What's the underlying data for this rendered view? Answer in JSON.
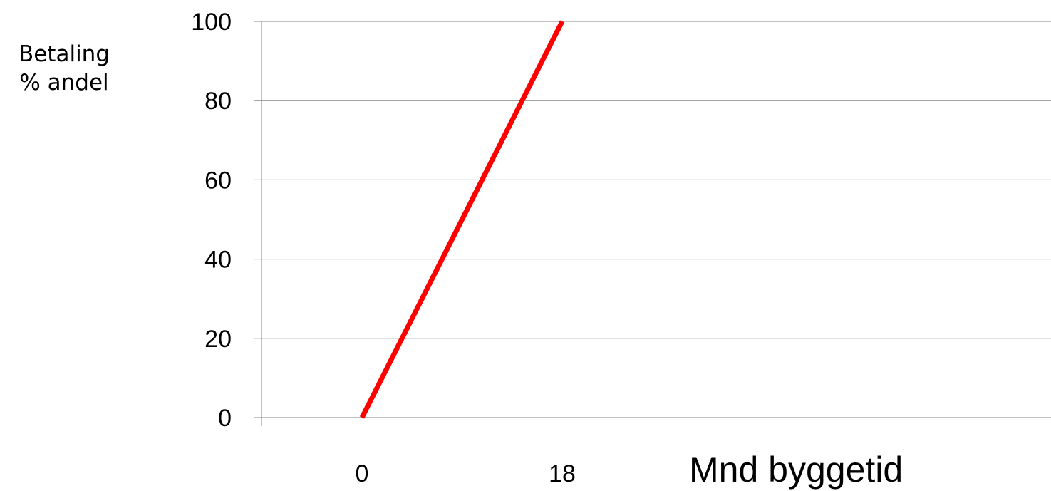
{
  "chart_data": {
    "type": "line",
    "ylabel_lines": [
      "Betaling",
      "% andel"
    ],
    "xlabel": "Mnd byggetid",
    "x_tick_labels": [
      "0",
      "18"
    ],
    "y_ticks": [
      0,
      20,
      40,
      60,
      80,
      100
    ],
    "ylim": [
      0,
      100
    ],
    "grid": true,
    "series": [
      {
        "color": "#ff0000",
        "points": [
          {
            "x": 0,
            "y": 0
          },
          {
            "x": 18,
            "y": 100
          }
        ]
      }
    ]
  }
}
